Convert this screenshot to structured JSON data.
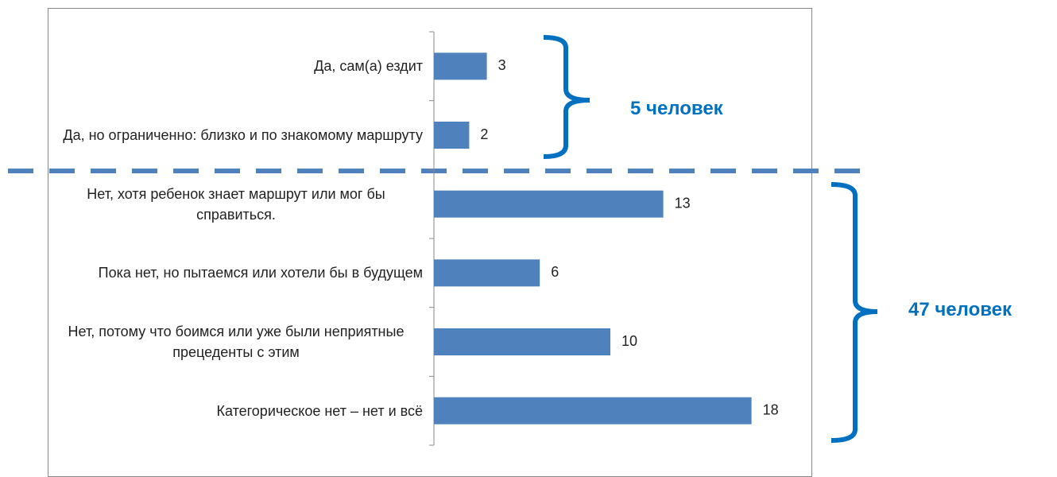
{
  "chart_data": {
    "type": "bar",
    "orientation": "horizontal",
    "color": "#4f81bd",
    "categories": [
      "Да, сам(а) ездит",
      "Да, но ограниченно: близко и по знакомому маршруту",
      "Нет, хотя ребенок знает маршрут или мог бы справиться.",
      "Пока нет, но пытаемся или хотели бы в будущем",
      "Нет, потому что боимся или уже были неприятные прецеденты с этим",
      "Категорическое нет – нет и всё"
    ],
    "values": [
      3,
      2,
      13,
      6,
      10,
      18
    ],
    "annotations": [
      "5 человек",
      "47 человек"
    ]
  }
}
